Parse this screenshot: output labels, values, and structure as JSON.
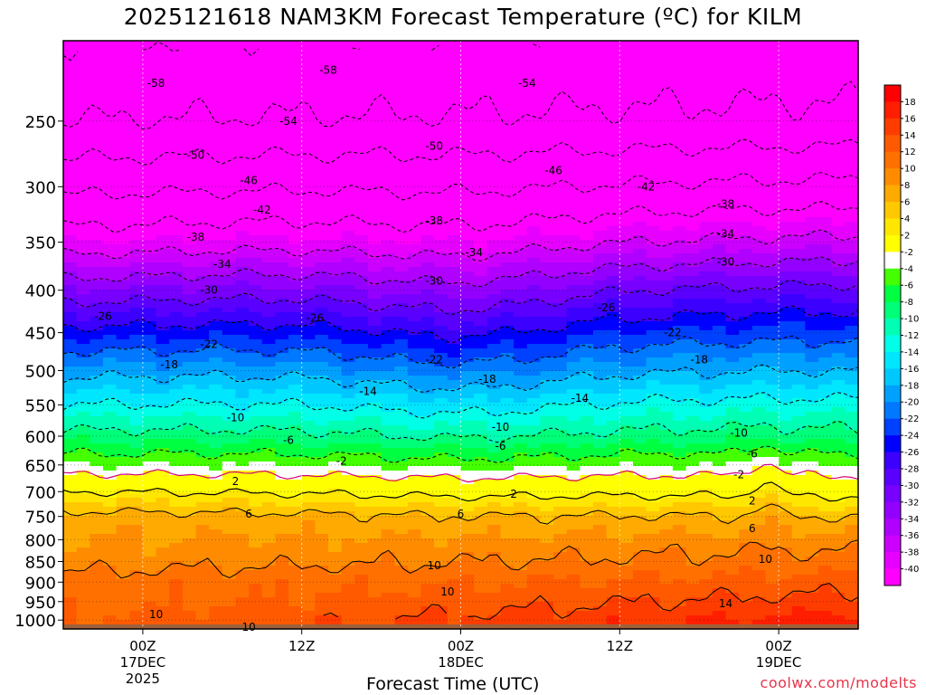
{
  "title": "2025121618 NAM3KM Forecast Temperature (ºC) for KILM",
  "footer": {
    "credit": "coolwx.com/modelts"
  },
  "chart_data": {
    "type": "heatmap",
    "title": "2025121618 NAM3KM Forecast Temperature (ºC) for KILM",
    "xlabel": "Forecast Time (UTC)",
    "ylabel": "",
    "y_axis": {
      "ticks": [
        250,
        300,
        350,
        400,
        450,
        500,
        550,
        600,
        650,
        700,
        750,
        800,
        850,
        900,
        950,
        1000
      ],
      "range": [
        200,
        1025
      ],
      "scale": "log"
    },
    "x_axis": {
      "range_hours": [
        0,
        60
      ],
      "ticks": [
        {
          "hour": 6,
          "lines": [
            "00Z",
            "17DEC",
            "2025"
          ]
        },
        {
          "hour": 18,
          "lines": [
            "12Z"
          ]
        },
        {
          "hour": 30,
          "lines": [
            "00Z",
            "18DEC"
          ]
        },
        {
          "hour": 42,
          "lines": [
            "12Z"
          ]
        },
        {
          "hour": 54,
          "lines": [
            "00Z",
            "19DEC"
          ]
        }
      ]
    },
    "colorbar": {
      "levels": [
        -40,
        -38,
        -36,
        -34,
        -32,
        -30,
        -28,
        -26,
        -24,
        -22,
        -20,
        -18,
        -16,
        -14,
        -12,
        -10,
        -8,
        -6,
        -4,
        -2,
        2,
        4,
        6,
        8,
        10,
        12,
        14,
        16,
        18
      ],
      "colors": [
        "#ff00ff",
        "#e600ff",
        "#cc00ff",
        "#b000ff",
        "#9400ff",
        "#7800ff",
        "#5a00ff",
        "#3c00ff",
        "#0000ff",
        "#0040ff",
        "#0078ff",
        "#00a0ff",
        "#00c8ff",
        "#00e6ff",
        "#00ffe6",
        "#00ffb4",
        "#00ff78",
        "#00ff40",
        "#44ff00",
        "#ffffff",
        "#ffff00",
        "#ffe600",
        "#ffc800",
        "#ffaa00",
        "#ff8c00",
        "#ff7000",
        "#ff5a00",
        "#ff3c00",
        "#ff1e00",
        "#ff0000"
      ]
    },
    "ground_color": "#a0603a",
    "profile_levels_hpa": [
      200,
      250,
      300,
      350,
      400,
      450,
      500,
      550,
      600,
      650,
      700,
      750,
      800,
      850,
      900,
      950,
      1000
    ],
    "profile_start_c": [
      -58,
      -54,
      -47,
      -40,
      -32,
      -25,
      -19,
      -14,
      -9,
      -4,
      2,
      7,
      8,
      9,
      11,
      11,
      12
    ],
    "profile_end_c": [
      -57,
      -53,
      -45,
      -37,
      -29,
      -23,
      -18,
      -13,
      -9,
      -4,
      1,
      6,
      9,
      11,
      13,
      15,
      17
    ],
    "contour_labels": [
      {
        "value": "-58",
        "hour": 7,
        "hpa": 225
      },
      {
        "value": "-58",
        "hour": 20,
        "hpa": 217
      },
      {
        "value": "-54",
        "hour": 35,
        "hpa": 225
      },
      {
        "value": "-54",
        "hour": 17,
        "hpa": 250
      },
      {
        "value": "-50",
        "hour": 10,
        "hpa": 275
      },
      {
        "value": "-50",
        "hour": 28,
        "hpa": 268
      },
      {
        "value": "-46",
        "hour": 14,
        "hpa": 295
      },
      {
        "value": "-46",
        "hour": 37,
        "hpa": 287
      },
      {
        "value": "-42",
        "hour": 15,
        "hpa": 320
      },
      {
        "value": "-42",
        "hour": 44,
        "hpa": 300
      },
      {
        "value": "-38",
        "hour": 10,
        "hpa": 345
      },
      {
        "value": "-38",
        "hour": 28,
        "hpa": 330
      },
      {
        "value": "-38",
        "hour": 50,
        "hpa": 315
      },
      {
        "value": "-34",
        "hour": 12,
        "hpa": 372
      },
      {
        "value": "-34",
        "hour": 31,
        "hpa": 360
      },
      {
        "value": "-34",
        "hour": 50,
        "hpa": 342
      },
      {
        "value": "-30",
        "hour": 11,
        "hpa": 400
      },
      {
        "value": "-30",
        "hour": 28,
        "hpa": 390
      },
      {
        "value": "-30",
        "hour": 50,
        "hpa": 370
      },
      {
        "value": "-26",
        "hour": 3,
        "hpa": 430
      },
      {
        "value": "-26",
        "hour": 19,
        "hpa": 432
      },
      {
        "value": "-26",
        "hour": 41,
        "hpa": 420
      },
      {
        "value": "-22",
        "hour": 11,
        "hpa": 465
      },
      {
        "value": "-22",
        "hour": 28,
        "hpa": 485
      },
      {
        "value": "-22",
        "hour": 46,
        "hpa": 450
      },
      {
        "value": "-18",
        "hour": 8,
        "hpa": 492
      },
      {
        "value": "-18",
        "hour": 32,
        "hpa": 512
      },
      {
        "value": "-18",
        "hour": 48,
        "hpa": 485
      },
      {
        "value": "-14",
        "hour": 23,
        "hpa": 530
      },
      {
        "value": "-14",
        "hour": 39,
        "hpa": 540
      },
      {
        "value": "-10",
        "hour": 13,
        "hpa": 570
      },
      {
        "value": "-10",
        "hour": 33,
        "hpa": 585
      },
      {
        "value": "-10",
        "hour": 51,
        "hpa": 595
      },
      {
        "value": "-6",
        "hour": 17,
        "hpa": 607
      },
      {
        "value": "-6",
        "hour": 33,
        "hpa": 617
      },
      {
        "value": "-6",
        "hour": 52,
        "hpa": 630
      },
      {
        "value": "-2",
        "hour": 21,
        "hpa": 643
      },
      {
        "value": "-2",
        "hour": 51,
        "hpa": 668
      },
      {
        "value": "2",
        "hour": 13,
        "hpa": 680
      },
      {
        "value": "2",
        "hour": 34,
        "hpa": 705
      },
      {
        "value": "2",
        "hour": 52,
        "hpa": 718
      },
      {
        "value": "6",
        "hour": 14,
        "hpa": 745
      },
      {
        "value": "6",
        "hour": 30,
        "hpa": 745
      },
      {
        "value": "6",
        "hour": 52,
        "hpa": 775
      },
      {
        "value": "10",
        "hour": 28,
        "hpa": 860
      },
      {
        "value": "10",
        "hour": 29,
        "hpa": 925
      },
      {
        "value": "10",
        "hour": 53,
        "hpa": 845
      },
      {
        "value": "10",
        "hour": 7,
        "hpa": 985
      },
      {
        "value": "10",
        "hour": 14,
        "hpa": 1020
      },
      {
        "value": "14",
        "hour": 50,
        "hpa": 955
      }
    ]
  }
}
